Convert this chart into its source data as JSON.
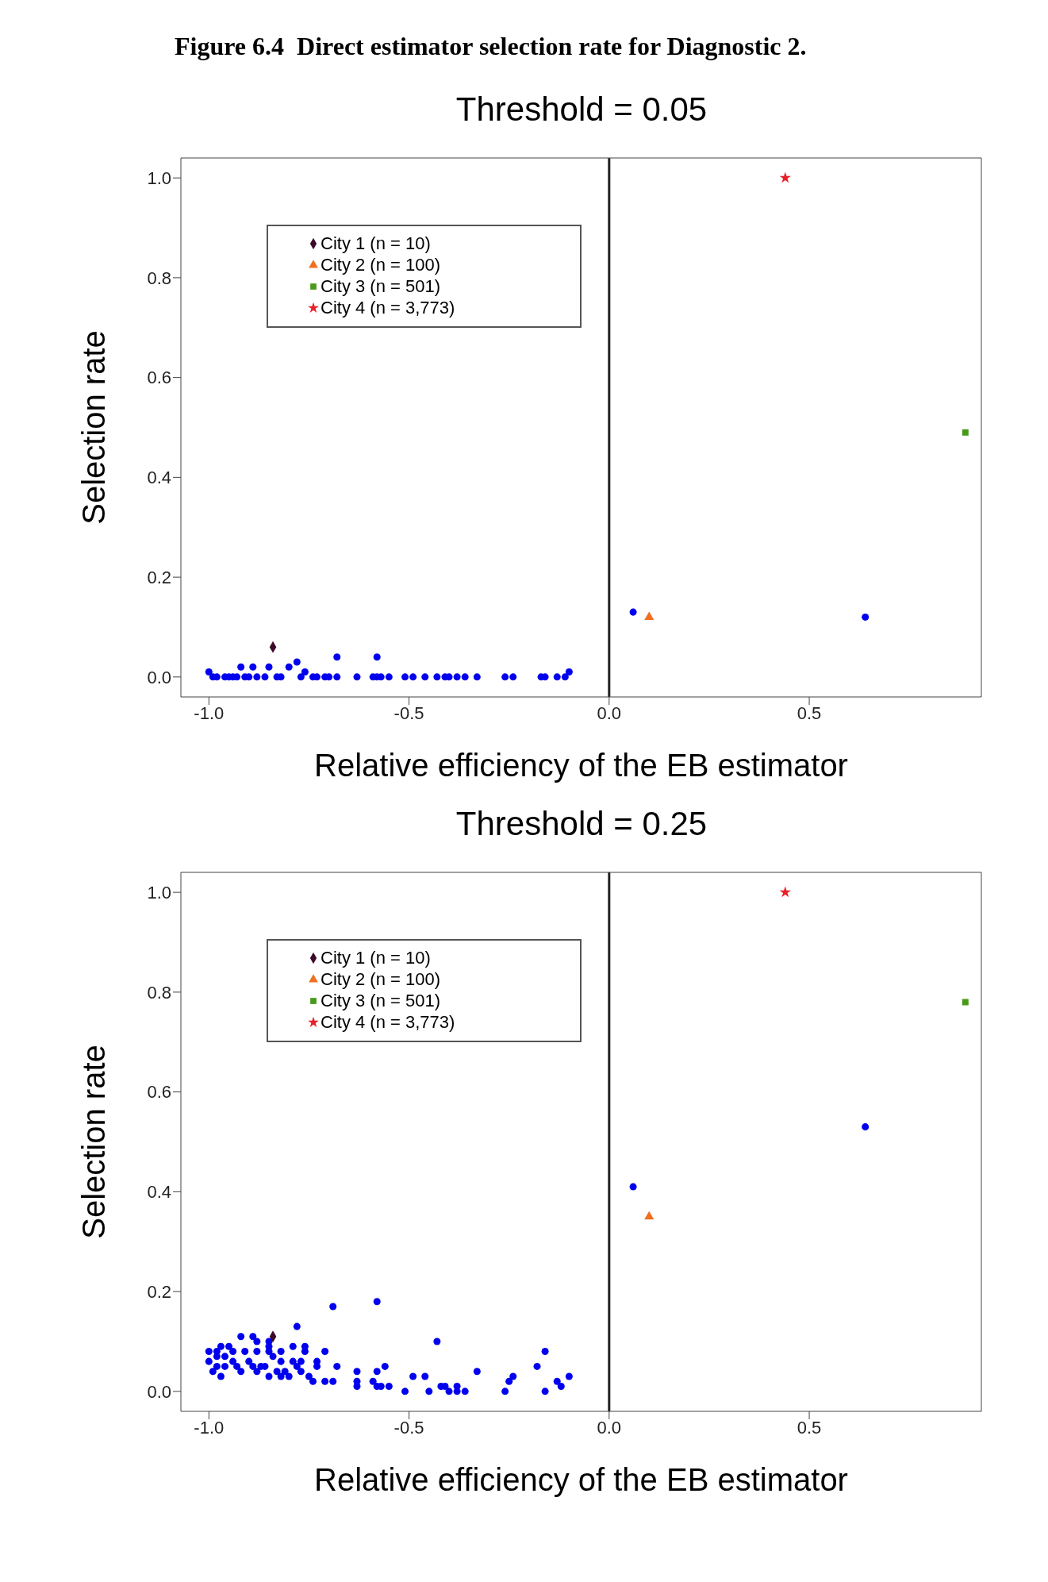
{
  "chart_data": [
    {
      "type": "scatter",
      "annotations": [
        "Figure 6.4  Direct estimator selection rate for Diagnostic 2."
      ],
      "title": "Threshold = 0.05",
      "xlabel": "Relative efficiency of the EB estimator",
      "ylabel": "Selection rate",
      "xlim": [
        -1.07,
        0.93
      ],
      "ylim": [
        -0.04,
        1.04
      ],
      "xticks": [
        {
          "value": -1,
          "label": "-1.0"
        },
        {
          "value": -0.5,
          "label": "-0.5"
        },
        {
          "value": 0,
          "label": "0.0"
        },
        {
          "value": 0.5,
          "label": "0.5"
        }
      ],
      "yticks": [
        {
          "value": 0,
          "label": "0.0"
        },
        {
          "value": 0.2,
          "label": "0.2"
        },
        {
          "value": 0.4,
          "label": "0.4"
        },
        {
          "value": 0.6,
          "label": "0.6"
        },
        {
          "value": 0.8,
          "label": "0.8"
        },
        {
          "value": 1,
          "label": "1.0"
        }
      ],
      "ref_lines": [
        {
          "axis": "x",
          "value": 0,
          "color": "#222222"
        }
      ],
      "legend": "top left",
      "series": [
        {
          "color": "#0000ee",
          "marker": "circle",
          "x": [
            -1.0,
            -0.99,
            -0.98,
            -0.96,
            -0.95,
            -0.94,
            -0.93,
            -0.92,
            -0.91,
            -0.9,
            -0.89,
            -0.88,
            -0.86,
            -0.85,
            -0.83,
            -0.82,
            -0.8,
            -0.78,
            -0.77,
            -0.76,
            -0.74,
            -0.73,
            -0.71,
            -0.7,
            -0.68,
            -0.68,
            -0.63,
            -0.59,
            -0.58,
            -0.58,
            -0.57,
            -0.55,
            -0.51,
            -0.49,
            -0.46,
            -0.43,
            -0.41,
            -0.4,
            -0.38,
            -0.36,
            -0.33,
            -0.26,
            -0.24,
            -0.17,
            -0.16,
            -0.13,
            -0.11,
            -0.1,
            0.06,
            0.64
          ],
          "values": [
            0.01,
            0,
            0,
            0,
            0,
            0,
            0,
            0.02,
            0,
            0,
            0.02,
            0,
            0,
            0.02,
            0,
            0,
            0.02,
            0.03,
            0,
            0.01,
            0,
            0,
            0,
            0,
            0,
            0.04,
            0,
            0,
            0.04,
            0,
            0,
            0,
            0,
            0,
            0,
            0,
            0,
            0,
            0,
            0,
            0,
            0,
            0,
            0,
            0,
            0,
            0,
            0.01,
            0.13,
            0.12
          ]
        },
        {
          "name": "City 1 (n = 10)",
          "color": "#3d0a2a",
          "marker": "diamond",
          "x": [
            -0.84
          ],
          "values": [
            0.06
          ]
        },
        {
          "name": "City 2 (n = 100)",
          "color": "#f07020",
          "marker": "triangle",
          "x": [
            0.1
          ],
          "values": [
            0.12
          ]
        },
        {
          "name": "City 3 (n = 501)",
          "color": "#4a9a1a",
          "marker": "square",
          "x": [
            0.89
          ],
          "values": [
            0.49
          ]
        },
        {
          "name": "City 4 (n = 3,773)",
          "color": "#e8202a",
          "marker": "star",
          "x": [
            0.44
          ],
          "values": [
            1.0
          ]
        }
      ]
    },
    {
      "type": "scatter",
      "title": "Threshold = 0.25",
      "xlabel": "Relative efficiency of the EB estimator",
      "ylabel": "Selection rate",
      "xlim": [
        -1.07,
        0.93
      ],
      "ylim": [
        -0.04,
        1.04
      ],
      "xticks": [
        {
          "value": -1,
          "label": "-1.0"
        },
        {
          "value": -0.5,
          "label": "-0.5"
        },
        {
          "value": 0,
          "label": "0.0"
        },
        {
          "value": 0.5,
          "label": "0.5"
        }
      ],
      "yticks": [
        {
          "value": 0,
          "label": "0.0"
        },
        {
          "value": 0.2,
          "label": "0.2"
        },
        {
          "value": 0.4,
          "label": "0.4"
        },
        {
          "value": 0.6,
          "label": "0.6"
        },
        {
          "value": 0.8,
          "label": "0.8"
        },
        {
          "value": 1,
          "label": "1.0"
        }
      ],
      "ref_lines": [
        {
          "axis": "x",
          "value": 0,
          "color": "#222222"
        }
      ],
      "legend": "top left",
      "series": [
        {
          "color": "#0000ee",
          "marker": "circle",
          "x": [
            -0.69,
            -0.58,
            -0.78,
            -0.92,
            -0.89,
            -0.85,
            -0.88,
            -0.85,
            -0.88,
            -0.91,
            -0.82,
            -0.79,
            -0.76,
            -0.76,
            -0.71,
            -0.73,
            -0.73,
            -0.68,
            -0.43,
            -0.16,
            -0.18,
            -0.33,
            -0.1,
            -0.56,
            -0.58,
            -0.63,
            -0.63,
            -0.63,
            -0.59,
            -0.58,
            -0.57,
            -0.55,
            -0.51,
            -0.49,
            -0.46,
            -0.45,
            -0.42,
            -0.41,
            -0.4,
            -0.38,
            -0.38,
            -0.36,
            -0.26,
            -0.25,
            -0.24,
            -0.16,
            -0.13,
            -0.12,
            -0.71,
            -0.69,
            -0.74,
            -0.75,
            -0.77,
            -0.8,
            -0.82,
            -0.85,
            -0.86,
            -0.88,
            -0.89,
            -0.9,
            -0.92,
            -0.93,
            -0.94,
            -0.97,
            -0.99,
            -1.0,
            -1.0,
            -0.98,
            -0.97,
            -0.95,
            -0.94,
            -0.98,
            -0.96,
            -0.96,
            -0.98,
            -0.83,
            -0.81,
            -0.78,
            -0.82,
            -0.79,
            -0.77,
            -0.84,
            -0.85,
            -0.87,
            0.06,
            0.64
          ],
          "values": [
            0.17,
            0.18,
            0.13,
            0.11,
            0.11,
            0.1,
            0.1,
            0.09,
            0.08,
            0.08,
            0.08,
            0.09,
            0.09,
            0.08,
            0.08,
            0.06,
            0.05,
            0.05,
            0.1,
            0.08,
            0.05,
            0.04,
            0.03,
            0.05,
            0.04,
            0.04,
            0.02,
            0.01,
            0.02,
            0.01,
            0.01,
            0.01,
            0.0,
            0.03,
            0.03,
            0.0,
            0.01,
            0.01,
            0.0,
            0.01,
            0.0,
            0.0,
            0.0,
            0.02,
            0.03,
            0.0,
            0.02,
            0.01,
            0.02,
            0.02,
            0.02,
            0.03,
            0.04,
            0.03,
            0.03,
            0.03,
            0.05,
            0.04,
            0.05,
            0.06,
            0.04,
            0.05,
            0.06,
            0.03,
            0.04,
            0.06,
            0.08,
            0.08,
            0.09,
            0.09,
            0.08,
            0.07,
            0.07,
            0.05,
            0.05,
            0.04,
            0.04,
            0.05,
            0.06,
            0.06,
            0.06,
            0.07,
            0.08,
            0.05,
            0.41,
            0.53
          ]
        },
        {
          "name": "City 1 (n = 10)",
          "color": "#3d0a2a",
          "marker": "diamond",
          "x": [
            -0.84
          ],
          "values": [
            0.11
          ]
        },
        {
          "name": "City 2 (n = 100)",
          "color": "#f07020",
          "marker": "triangle",
          "x": [
            0.1
          ],
          "values": [
            0.35
          ]
        },
        {
          "name": "City 3 (n = 501)",
          "color": "#4a9a1a",
          "marker": "square",
          "x": [
            0.89
          ],
          "values": [
            0.78
          ]
        },
        {
          "name": "City 4 (n = 3,773)",
          "color": "#e8202a",
          "marker": "star",
          "x": [
            0.44
          ],
          "values": [
            1.0
          ]
        }
      ]
    }
  ]
}
